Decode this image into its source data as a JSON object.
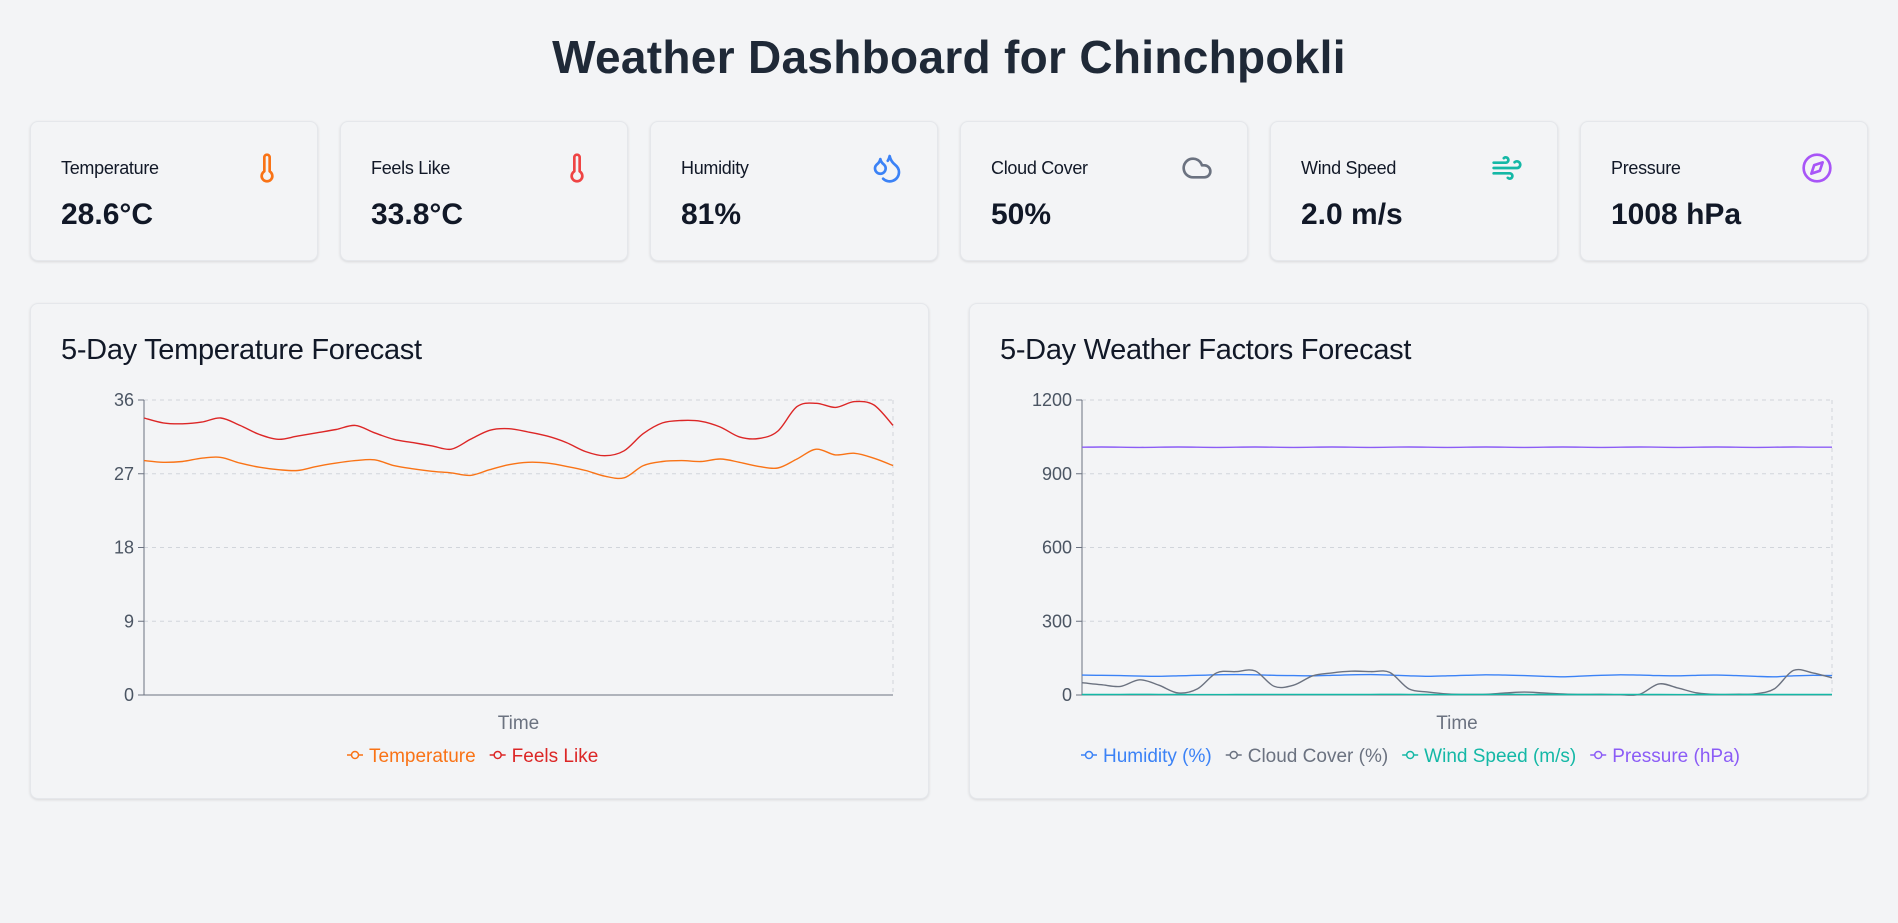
{
  "page": {
    "title": "Weather Dashboard for Chinchpokli"
  },
  "stats": [
    {
      "label": "Temperature",
      "value": "28.6°C",
      "icon": "thermometer-icon",
      "color": "#f97316"
    },
    {
      "label": "Feels Like",
      "value": "33.8°C",
      "icon": "thermometer-icon",
      "color": "#ef4444"
    },
    {
      "label": "Humidity",
      "value": "81%",
      "icon": "droplets-icon",
      "color": "#3b82f6"
    },
    {
      "label": "Cloud Cover",
      "value": "50%",
      "icon": "cloud-icon",
      "color": "#6b7280"
    },
    {
      "label": "Wind Speed",
      "value": "2.0 m/s",
      "icon": "wind-icon",
      "color": "#14b8a6"
    },
    {
      "label": "Pressure",
      "value": "1008 hPa",
      "icon": "compass-icon",
      "color": "#a855f7"
    }
  ],
  "chart_data": [
    {
      "type": "line",
      "title": "5-Day Temperature Forecast",
      "xlabel": "Time",
      "ylabel": "",
      "ylim": [
        0,
        36
      ],
      "yticks": [
        "0",
        "9",
        "18",
        "27",
        "36"
      ],
      "grid": true,
      "legend_position": "bottom",
      "series": [
        {
          "name": "Temperature",
          "color": "#f97316",
          "values": [
            28.6,
            28.4,
            28.5,
            28.9,
            29.0,
            28.3,
            27.8,
            27.5,
            27.4,
            27.9,
            28.3,
            28.6,
            28.7,
            28.0,
            27.6,
            27.3,
            27.1,
            26.8,
            27.5,
            28.1,
            28.4,
            28.3,
            27.9,
            27.4,
            26.7,
            26.5,
            28.0,
            28.5,
            28.6,
            28.5,
            28.8,
            28.4,
            27.9,
            27.7,
            28.8,
            30.0,
            29.3,
            29.5,
            28.9,
            28.0
          ]
        },
        {
          "name": "Feels Like",
          "color": "#dc2626",
          "values": [
            33.8,
            33.2,
            33.1,
            33.3,
            33.8,
            32.9,
            31.8,
            31.2,
            31.6,
            32.0,
            32.4,
            32.9,
            32.0,
            31.2,
            30.8,
            30.4,
            30.0,
            31.2,
            32.3,
            32.5,
            32.1,
            31.6,
            30.8,
            29.7,
            29.2,
            29.8,
            31.9,
            33.2,
            33.5,
            33.4,
            32.7,
            31.5,
            31.3,
            32.2,
            35.2,
            35.6,
            35.1,
            35.8,
            35.4,
            32.9
          ]
        }
      ]
    },
    {
      "type": "line",
      "title": "5-Day Weather Factors Forecast",
      "xlabel": "Time",
      "ylabel": "",
      "ylim": [
        0,
        1200
      ],
      "yticks": [
        "0",
        "300",
        "600",
        "900",
        "1200"
      ],
      "grid": true,
      "legend_position": "bottom",
      "series": [
        {
          "name": "Humidity (%)",
          "color": "#3b82f6",
          "values": [
            81,
            80,
            79,
            77,
            76,
            78,
            80,
            82,
            83,
            82,
            80,
            79,
            78,
            80,
            82,
            83,
            81,
            78,
            76,
            78,
            80,
            82,
            81,
            79,
            76,
            74,
            77,
            80,
            82,
            81,
            79,
            78,
            80,
            81,
            79,
            76,
            74,
            78,
            80,
            79
          ]
        },
        {
          "name": "Cloud Cover (%)",
          "color": "#6b7280",
          "values": [
            50,
            42,
            35,
            62,
            40,
            8,
            25,
            90,
            95,
            98,
            35,
            40,
            78,
            90,
            97,
            95,
            92,
            25,
            12,
            4,
            2,
            3,
            8,
            12,
            8,
            4,
            2,
            3,
            1,
            3,
            45,
            28,
            8,
            2,
            3,
            5,
            25,
            100,
            90,
            70
          ]
        },
        {
          "name": "Wind Speed (m/s)",
          "color": "#14b8a6",
          "values": [
            2.0,
            2.2,
            2.5,
            2.8,
            2.4,
            2.0,
            1.8,
            1.6,
            2.1,
            2.4,
            2.6,
            2.3,
            2.0,
            1.9,
            2.2,
            2.5,
            2.7,
            2.4,
            2.0,
            1.8,
            2.3,
            2.6,
            2.9,
            2.5,
            2.1,
            1.9,
            2.2,
            2.4,
            2.6,
            2.3,
            2.0,
            1.8,
            2.1,
            2.3,
            2.5,
            2.2,
            2.0,
            1.9,
            2.1,
            2.0
          ]
        },
        {
          "name": "Pressure (hPa)",
          "color": "#8b5cf6",
          "values": [
            1008,
            1009,
            1008,
            1007,
            1008,
            1009,
            1008,
            1007,
            1008,
            1009,
            1008,
            1007,
            1008,
            1009,
            1008,
            1007,
            1008,
            1009,
            1008,
            1007,
            1008,
            1009,
            1008,
            1007,
            1008,
            1009,
            1008,
            1007,
            1008,
            1009,
            1008,
            1007,
            1008,
            1009,
            1008,
            1007,
            1008,
            1009,
            1008,
            1008
          ]
        }
      ]
    }
  ]
}
